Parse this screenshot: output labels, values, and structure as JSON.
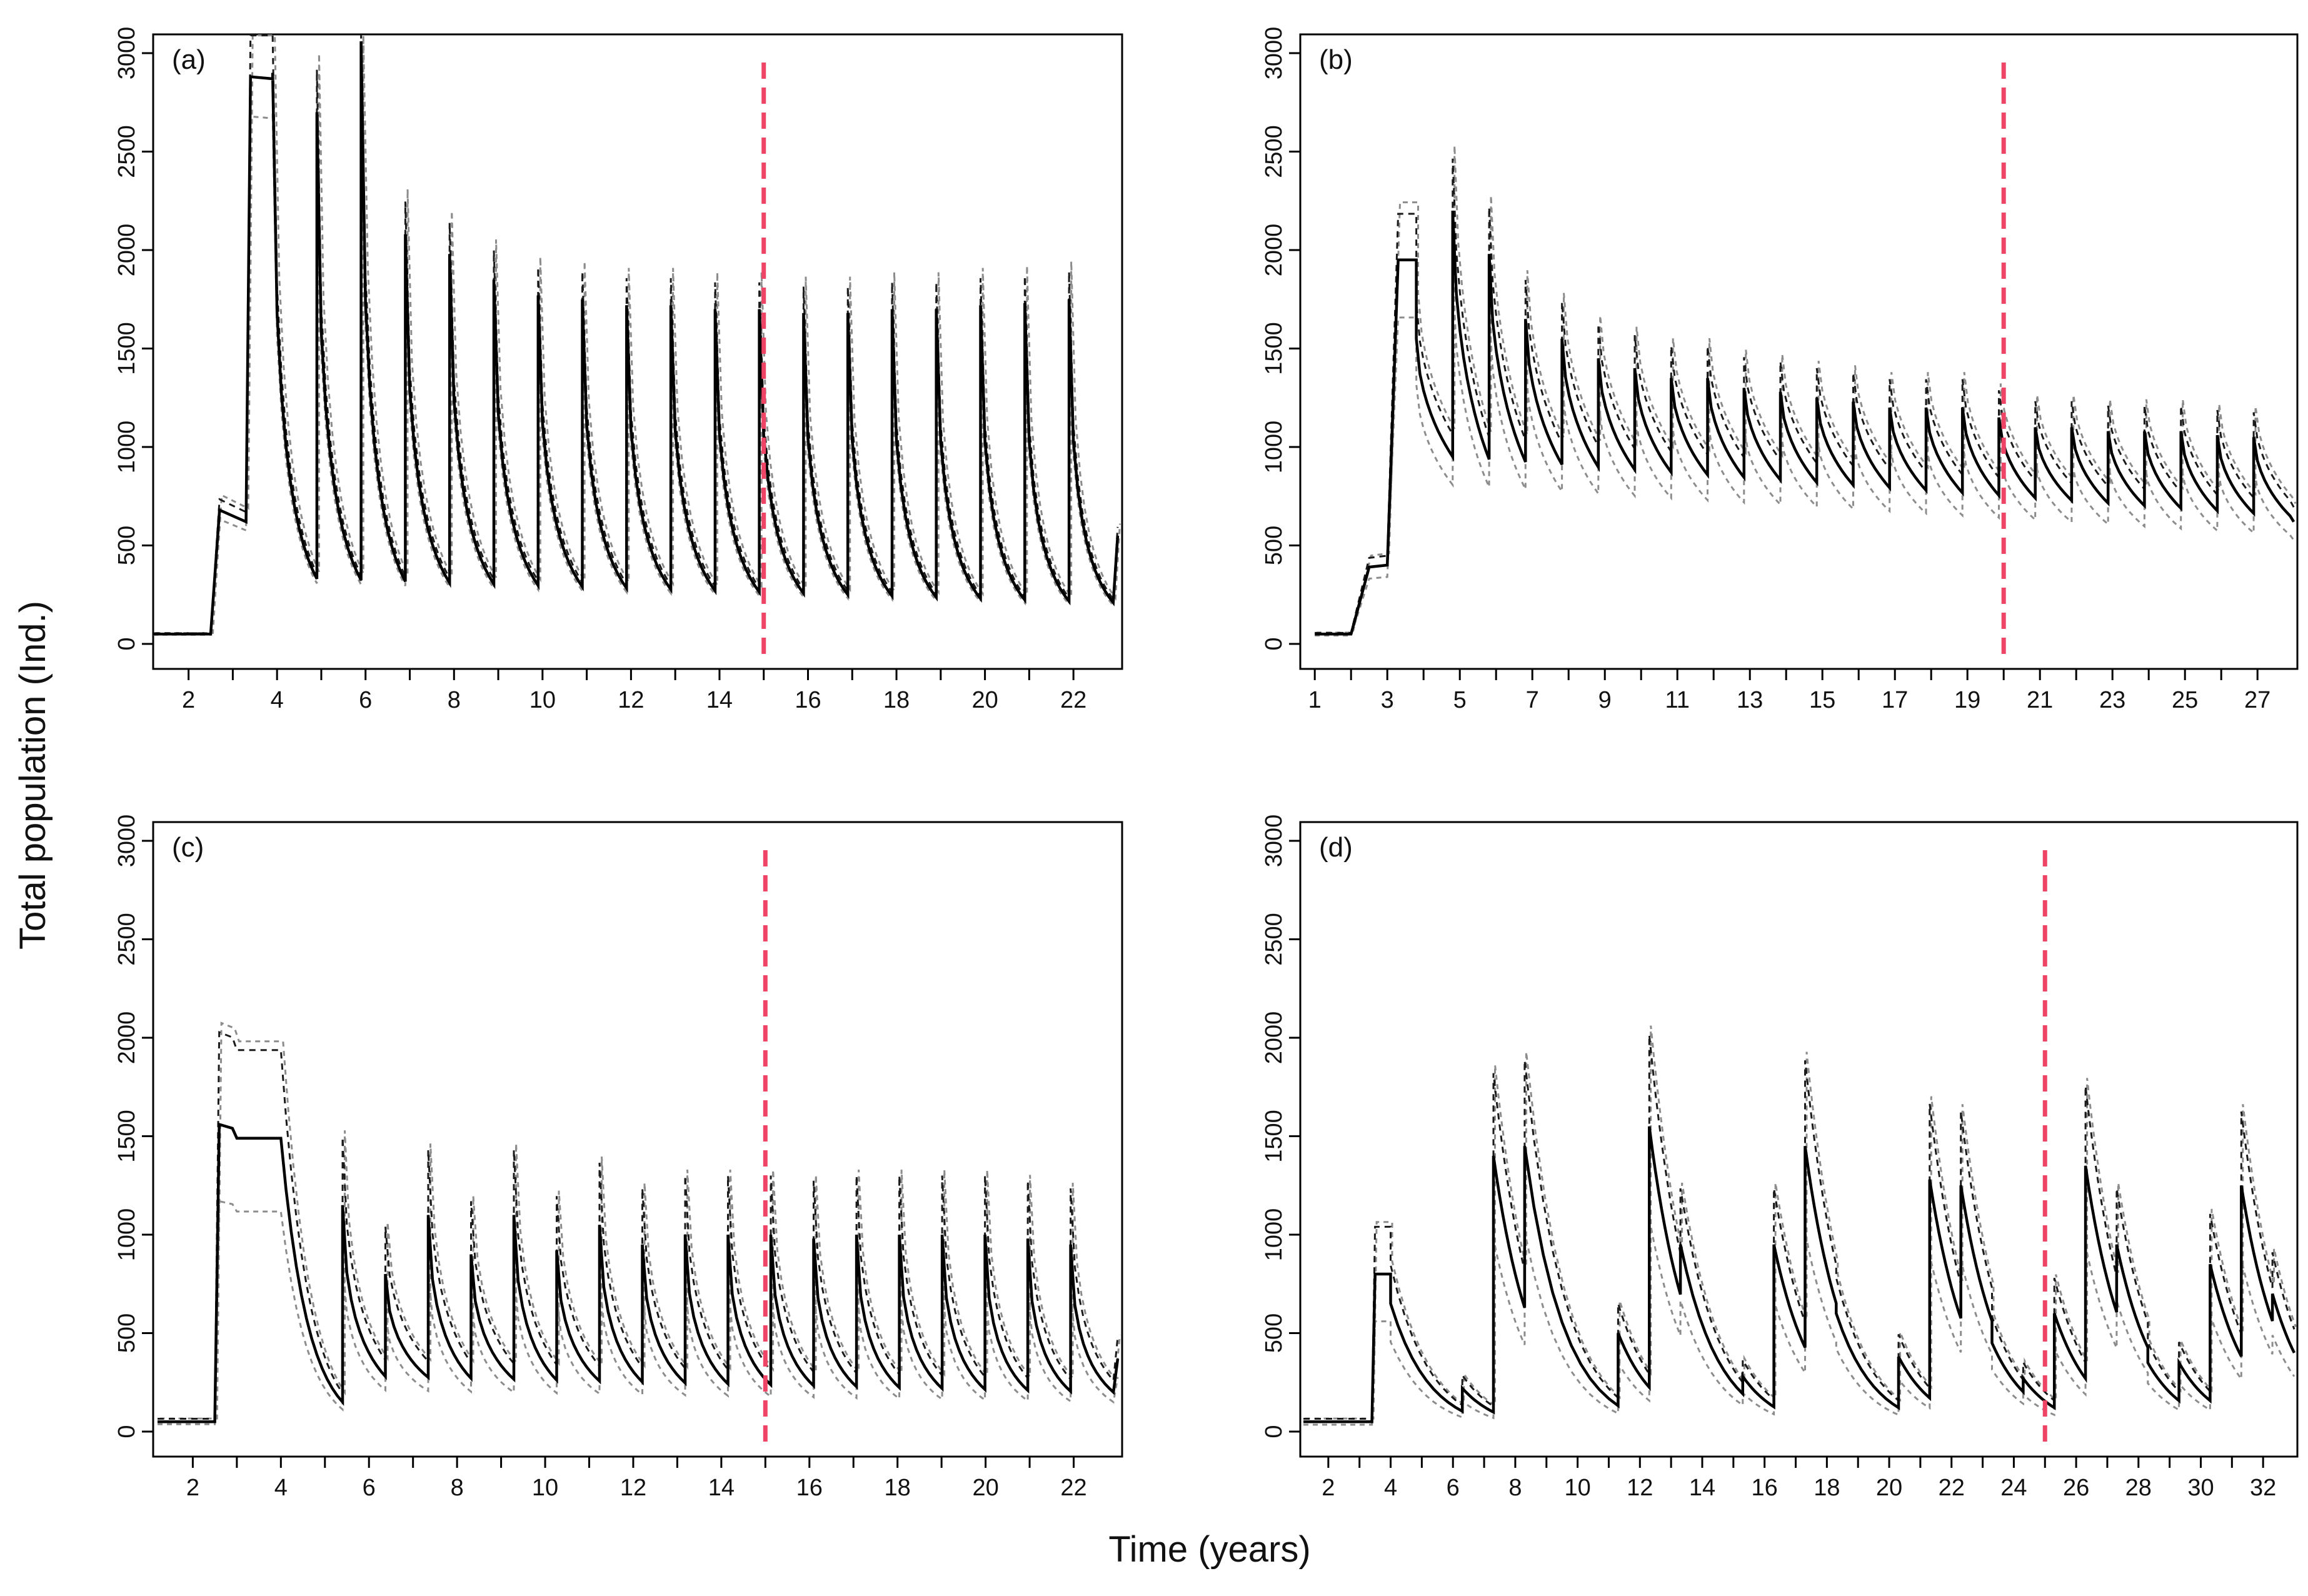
{
  "figure": {
    "ylabel": "Total population (Ind.)",
    "xlabel": "Time (years)"
  },
  "colors": {
    "mean_line": "#000000",
    "bound_dark": "#1a1a1a",
    "bound_gray": "#8c8c8c",
    "marker_line": "#ee4466"
  },
  "chart_data": [
    {
      "type": "line",
      "label": "(a)",
      "xlim": [
        1.2,
        23.1
      ],
      "ylim": [
        0,
        3000
      ],
      "x_ticks": [
        2,
        4,
        6,
        8,
        10,
        12,
        14,
        16,
        18,
        20,
        22
      ],
      "y_ticks": [
        0,
        500,
        1000,
        1500,
        2000,
        2500,
        3000
      ],
      "vline_x": 15,
      "series": {
        "steps": [
          [
            1.2,
            50
          ],
          [
            2.5,
            50
          ],
          [
            2.7,
            680
          ],
          [
            3.3,
            620
          ],
          [
            3.4,
            2880
          ],
          [
            3.9,
            2870
          ]
        ],
        "cycle_start": 3.9,
        "peaks": [
          2900,
          2700,
          3060,
          2080,
          1980,
          1850,
          1770,
          1750,
          1720,
          1720,
          1700,
          1700,
          1680,
          1680,
          1700,
          1700,
          1720,
          1730,
          1750
        ],
        "trough_hi": 330,
        "trough_lo": 210,
        "upper_factor": 1.08,
        "lower_factor": 0.93,
        "end_x": 23.0,
        "end_y": 550
      }
    },
    {
      "type": "line",
      "label": "(b)",
      "xlim": [
        0.6,
        28.1
      ],
      "ylim": [
        0,
        3000
      ],
      "x_ticks": [
        1,
        3,
        5,
        7,
        9,
        11,
        13,
        15,
        17,
        19,
        21,
        23,
        25,
        27
      ],
      "y_ticks": [
        0,
        500,
        1000,
        1500,
        2000,
        2500,
        3000
      ],
      "vline_x": 20,
      "series": {
        "steps": [
          [
            1.0,
            50
          ],
          [
            2.0,
            50
          ],
          [
            2.5,
            390
          ],
          [
            3.0,
            400
          ],
          [
            3.3,
            1950
          ],
          [
            3.8,
            1950
          ]
        ],
        "cycle_start": 3.8,
        "peaks": [
          1550,
          2200,
          1980,
          1650,
          1550,
          1450,
          1400,
          1350,
          1350,
          1300,
          1280,
          1250,
          1230,
          1200,
          1200,
          1200,
          1150,
          1100,
          1100,
          1080,
          1080,
          1080,
          1060,
          1050
        ],
        "trough_hi": 950,
        "trough_lo": 650,
        "upper_factor": 1.12,
        "lower_factor": 0.85,
        "end_x": 28.0,
        "end_y": 620
      }
    },
    {
      "type": "line",
      "label": "(c)",
      "xlim": [
        1.1,
        23.1
      ],
      "ylim": [
        0,
        3000
      ],
      "x_ticks": [
        2,
        4,
        6,
        8,
        10,
        12,
        14,
        16,
        18,
        20,
        22
      ],
      "y_ticks": [
        0,
        500,
        1000,
        1500,
        2000,
        2500,
        3000
      ],
      "vline_x": 15,
      "series": {
        "steps": [
          [
            1.2,
            50
          ],
          [
            2.5,
            50
          ],
          [
            2.6,
            1560
          ],
          [
            2.9,
            1540
          ],
          [
            3.0,
            1490
          ],
          [
            4.0,
            1490
          ]
        ],
        "cycle_start": 5.4,
        "decay_from": [
          4.0,
          1490
        ],
        "first_trough": 150,
        "peaks": [
          1150,
          800,
          1100,
          900,
          1100,
          920,
          1050,
          950,
          1000,
          1000,
          1000,
          980,
          1000,
          1000,
          1000,
          1000,
          980,
          950
        ],
        "trough_hi": 280,
        "trough_lo": 200,
        "upper_factor": 1.3,
        "lower_factor": 0.75,
        "end_x": 23.0,
        "end_y": 370
      }
    },
    {
      "type": "line",
      "label": "(d)",
      "xlim": [
        1.1,
        33.1
      ],
      "ylim": [
        0,
        3000
      ],
      "x_ticks": [
        2,
        4,
        6,
        8,
        10,
        12,
        14,
        16,
        18,
        20,
        22,
        24,
        26,
        28,
        30,
        32
      ],
      "y_ticks": [
        0,
        500,
        1000,
        1500,
        2000,
        2500,
        3000
      ],
      "vline_x": 25,
      "series": {
        "steps": [
          [
            1.2,
            50
          ],
          [
            3.4,
            50
          ],
          [
            3.5,
            800
          ],
          [
            4.0,
            800
          ]
        ],
        "cycle_start": 4.0,
        "decay_from": [
          4.0,
          650
        ],
        "first_trough": 80,
        "first_trough_x": 6.3,
        "spikes": [
          [
            6.3,
            220
          ],
          [
            7.3,
            1400
          ],
          [
            8.3,
            1450
          ],
          [
            11.3,
            500
          ],
          [
            12.3,
            1550
          ],
          [
            13.3,
            950
          ],
          [
            15.3,
            280
          ],
          [
            16.3,
            950
          ],
          [
            17.3,
            1450
          ],
          [
            18.3,
            600
          ],
          [
            20.3,
            380
          ],
          [
            21.3,
            1280
          ],
          [
            22.3,
            1250
          ],
          [
            23.3,
            450
          ],
          [
            24.3,
            270
          ],
          [
            25.3,
            600
          ],
          [
            26.3,
            1350
          ],
          [
            27.3,
            950
          ],
          [
            28.3,
            350
          ],
          [
            29.3,
            350
          ],
          [
            30.3,
            850
          ],
          [
            31.3,
            1250
          ],
          [
            32.3,
            700
          ]
        ],
        "trough_lo": 90,
        "upper_factor": 1.3,
        "lower_factor": 0.7,
        "end_x": 33.0,
        "end_y": 310
      }
    }
  ]
}
